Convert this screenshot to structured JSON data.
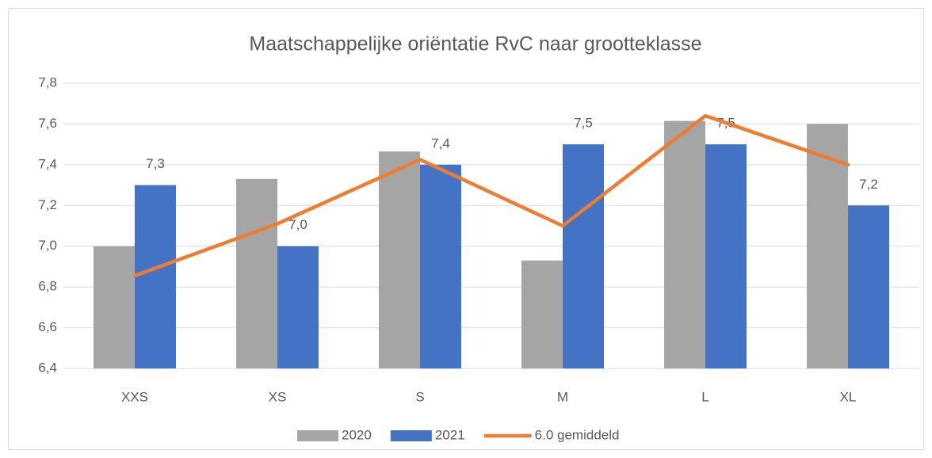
{
  "chart_data": {
    "type": "bar",
    "title": "Maatschappelijke oriëntatie RvC naar grootteklasse",
    "categories": [
      "XXS",
      "XS",
      "S",
      "M",
      "L",
      "XL"
    ],
    "series": [
      {
        "name": "2020",
        "type": "bar",
        "color": "#a5a5a5",
        "values": [
          7.0,
          7.33,
          7.465,
          6.93,
          7.615,
          7.6
        ]
      },
      {
        "name": "2021",
        "type": "bar",
        "color": "#4472c4",
        "values": [
          7.3,
          7.0,
          7.4,
          7.5,
          7.5,
          7.2
        ],
        "value_labels": [
          "7,3",
          "7,0",
          "7,4",
          "7,5",
          "7,5",
          "7,2"
        ]
      },
      {
        "name": "6.0 gemiddeld",
        "type": "line",
        "color": "#ed7d31",
        "values": [
          6.855,
          7.11,
          7.425,
          7.1,
          7.64,
          7.4
        ]
      }
    ],
    "ylim": [
      6.4,
      7.8
    ],
    "yticks": [
      {
        "value": 6.4,
        "label": "6,4"
      },
      {
        "value": 6.6,
        "label": "6,6"
      },
      {
        "value": 6.8,
        "label": "6,8"
      },
      {
        "value": 7.0,
        "label": "7,0"
      },
      {
        "value": 7.2,
        "label": "7,2"
      },
      {
        "value": 7.4,
        "label": "7,4"
      },
      {
        "value": 7.6,
        "label": "7,6"
      },
      {
        "value": 7.8,
        "label": "7,8"
      }
    ],
    "grid": true,
    "legend": "bottom"
  }
}
